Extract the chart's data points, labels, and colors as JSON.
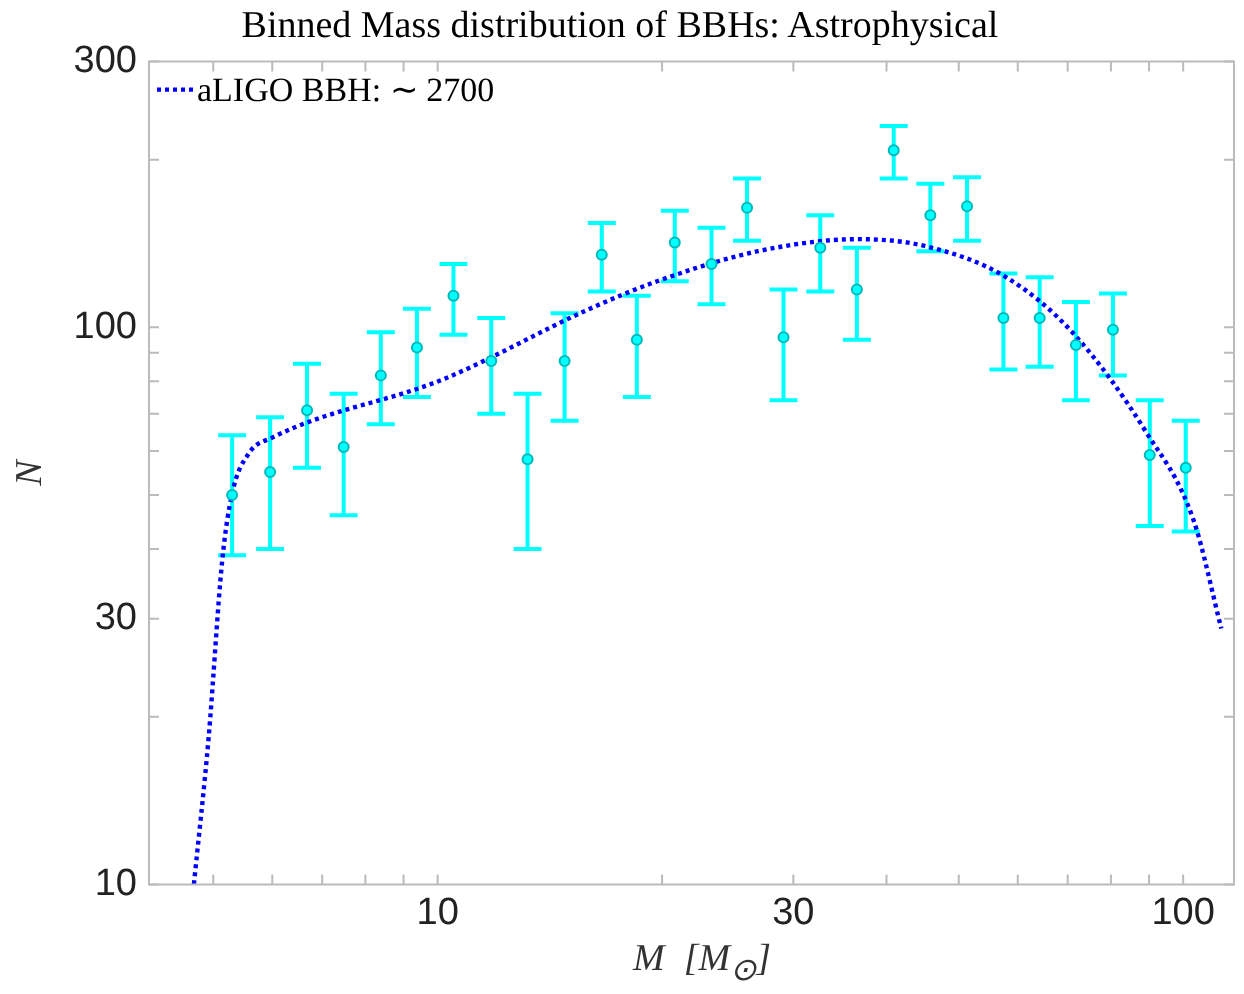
{
  "chart_data": {
    "type": "scatter",
    "title": "Binned Mass distribution of BBHs: Astrophysical",
    "xlabel": "M  [M$_{⊙}$]",
    "ylabel": "N",
    "log": "xy",
    "grid": false,
    "legend": "top left",
    "xlim": [
      4.1,
      117
    ],
    "ylim": [
      10,
      300
    ],
    "xticks": [
      {
        "value": 5,
        "label": null
      },
      {
        "value": 6,
        "label": null
      },
      {
        "value": 7,
        "label": null
      },
      {
        "value": 8,
        "label": null
      },
      {
        "value": 9,
        "label": null
      },
      10,
      {
        "value": 20,
        "label": null
      },
      30,
      {
        "value": 40,
        "label": null
      },
      {
        "value": 50,
        "label": null
      },
      {
        "value": 60,
        "label": null
      },
      {
        "value": 70,
        "label": null
      },
      {
        "value": 80,
        "label": null
      },
      {
        "value": 90,
        "label": null
      },
      100
    ],
    "yticks": [
      10,
      {
        "value": 20,
        "label": null
      },
      30,
      {
        "value": 40,
        "label": null
      },
      {
        "value": 50,
        "label": null
      },
      {
        "value": 60,
        "label": null
      },
      {
        "value": 70,
        "label": null
      },
      {
        "value": 80,
        "label": null
      },
      {
        "value": 90,
        "label": null
      },
      100,
      {
        "value": 200,
        "label": null
      },
      300
    ],
    "series": [
      {
        "color": "#00ffff",
        "marker": "circle",
        "x": [
          5.3,
          5.96,
          6.68,
          7.48,
          8.39,
          9.38,
          10.5,
          11.8,
          13.2,
          14.8,
          16.6,
          18.5,
          20.8,
          23.3,
          26.0,
          29.1,
          32.6,
          36.5,
          40.9,
          45.8,
          51.3,
          57.4,
          64.2,
          71.8,
          80.5,
          90.2,
          100.8
        ],
        "values": [
          50,
          55,
          71,
          61,
          82,
          92,
          114,
          87,
          58,
          87,
          135,
          95,
          142,
          130,
          164,
          96,
          139,
          117,
          208,
          159,
          165,
          104,
          104,
          93,
          99,
          59,
          56
        ],
        "errors": [
          [
            39,
            64
          ],
          [
            40,
            69
          ],
          [
            56,
            86
          ],
          [
            46,
            76
          ],
          [
            67,
            98
          ],
          [
            75,
            108
          ],
          [
            97,
            130
          ],
          [
            70,
            104
          ],
          [
            40,
            76
          ],
          [
            68,
            106
          ],
          [
            116,
            154
          ],
          [
            75,
            114
          ],
          [
            121,
            162
          ],
          [
            110,
            151
          ],
          [
            143,
            185
          ],
          [
            74,
            117
          ],
          [
            116,
            159
          ],
          [
            95,
            139
          ],
          [
            185,
            230
          ],
          [
            137,
            181
          ],
          [
            143,
            186
          ],
          [
            84,
            125
          ],
          [
            85,
            123
          ],
          [
            74,
            111
          ],
          [
            82,
            115
          ],
          [
            44,
            74
          ],
          [
            43,
            68
          ]
        ]
      },
      {
        "type": "line",
        "name": "aLIGO BBH: ∼ 2700",
        "color": "#0000ff",
        "line_style": "dotted",
        "marker": "none",
        "x": [
          4.71,
          4.93,
          5.14,
          5.3,
          5.58,
          6.0,
          10.2,
          16.0,
          19.7,
          26.9,
          36.6,
          45.0,
          57.9,
          71,
          89.1,
          103.3,
          112.5
        ],
        "values": [
          10,
          18.4,
          38.1,
          50.3,
          59.4,
          63.4,
          80.8,
          108,
          121,
          137,
          144,
          140,
          123,
          98,
          65,
          45,
          28.8
        ]
      }
    ]
  }
}
